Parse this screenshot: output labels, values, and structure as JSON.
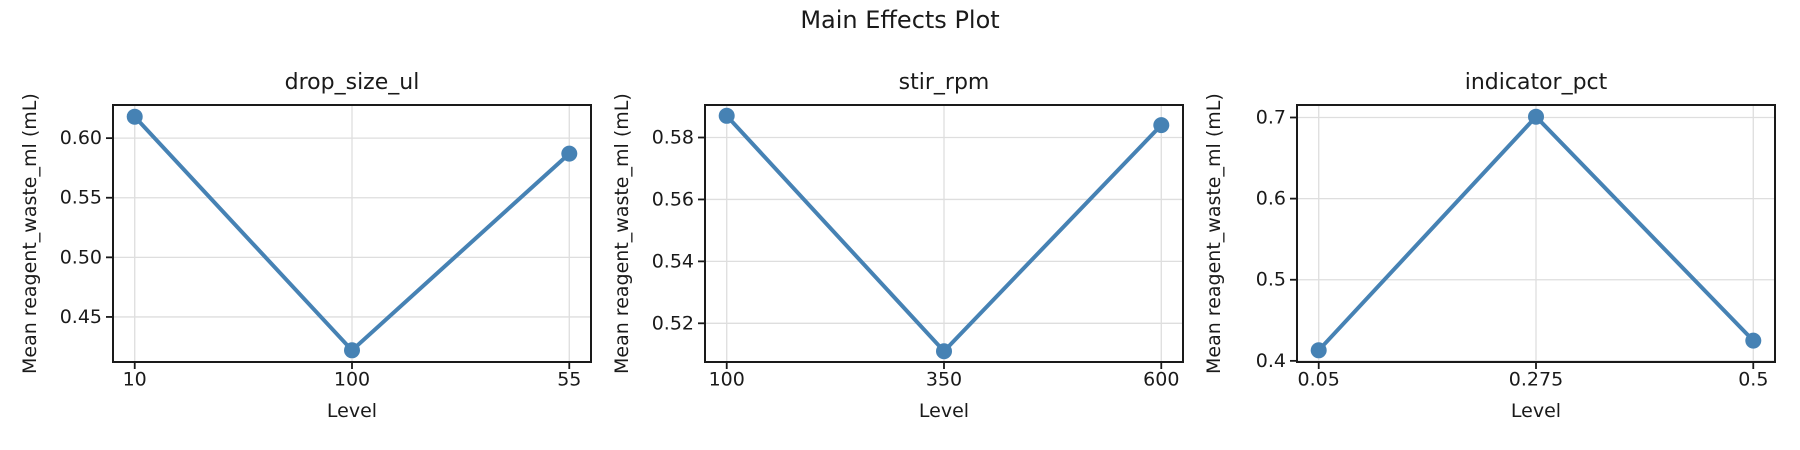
{
  "figure": {
    "suptitle": "Main Effects Plot"
  },
  "style": {
    "line_color": "#4682B4",
    "grid_color": "#DEDEDE",
    "spine_color": "#1A1A1A",
    "text_color": "#1A1A1A",
    "background": "#FFFFFF"
  },
  "chart_data": [
    {
      "type": "line",
      "title": "drop_size_ul",
      "xlabel": "Level",
      "ylabel": "Mean reagent_waste_ml (mL)",
      "categories": [
        "10",
        "100",
        "55"
      ],
      "values": [
        0.618,
        0.422,
        0.587
      ],
      "yticks": [
        0.45,
        0.5,
        0.55,
        0.6
      ],
      "ytick_labels": [
        "0.45",
        "0.50",
        "0.55",
        "0.60"
      ],
      "ylim": [
        0.4122,
        0.6278
      ],
      "grid": true,
      "legend": false,
      "line_color": "#4682B4"
    },
    {
      "type": "line",
      "title": "stir_rpm",
      "xlabel": "Level",
      "ylabel": "Mean reagent_waste_ml (mL)",
      "categories": [
        "100",
        "350",
        "600"
      ],
      "values": [
        0.587,
        0.511,
        0.584
      ],
      "yticks": [
        0.52,
        0.54,
        0.56,
        0.58
      ],
      "ytick_labels": [
        "0.52",
        "0.54",
        "0.56",
        "0.58"
      ],
      "ylim": [
        0.5075,
        0.5905
      ],
      "grid": true,
      "legend": false,
      "line_color": "#4682B4"
    },
    {
      "type": "line",
      "title": "indicator_pct",
      "xlabel": "Level",
      "ylabel": "Mean reagent_waste_ml (mL)",
      "categories": [
        "0.05",
        "0.275",
        "0.5"
      ],
      "values": [
        0.413,
        0.701,
        0.425
      ],
      "yticks": [
        0.4,
        0.5,
        0.6,
        0.7
      ],
      "ytick_labels": [
        "0.4",
        "0.5",
        "0.6",
        "0.7"
      ],
      "ylim": [
        0.3986,
        0.7154
      ],
      "grid": true,
      "legend": false,
      "line_color": "#4682B4"
    }
  ]
}
